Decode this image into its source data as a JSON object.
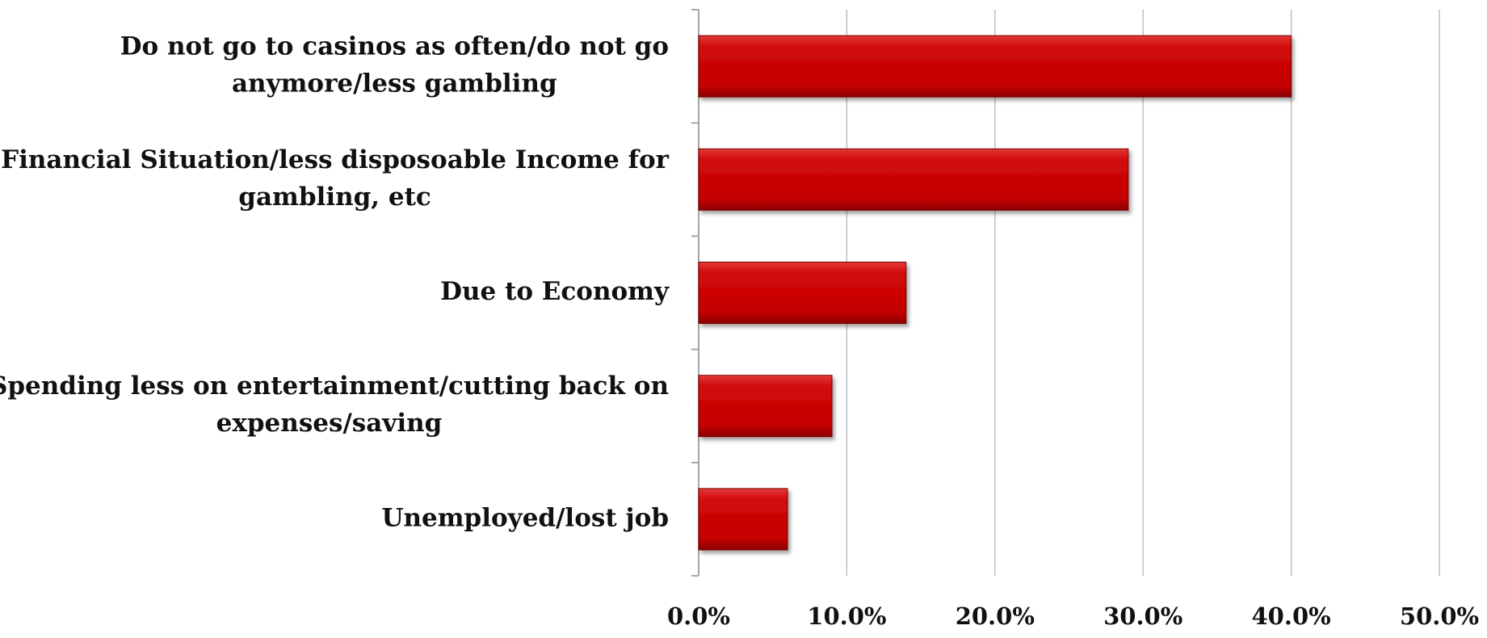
{
  "chart_data": {
    "type": "bar",
    "orientation": "horizontal",
    "categories": [
      [
        "Do not go to casinos as often/do not go",
        "anymore/less gambling"
      ],
      [
        "Financial Situation/less disposoable Income for",
        "gambling, etc"
      ],
      [
        "Due to Economy"
      ],
      [
        "Spending less on entertainment/cutting back on",
        "expenses/saving"
      ],
      [
        "Unemployed/lost job"
      ]
    ],
    "values": [
      40.0,
      29.0,
      14.0,
      9.0,
      6.0
    ],
    "xlim": [
      0,
      50
    ],
    "xticks": [
      0,
      10,
      20,
      30,
      40,
      50
    ],
    "xtick_labels": [
      "0.0%",
      "10.0%",
      "20.0%",
      "30.0%",
      "40.0%",
      "50.0%"
    ],
    "grid": true,
    "legend": "none",
    "colors": {
      "bar": "#c80000",
      "bar_highlight": "#e83030",
      "bar_shadow": "#7a0000",
      "grid": "#bfbfbf",
      "axis": "#a6a6a6"
    }
  }
}
